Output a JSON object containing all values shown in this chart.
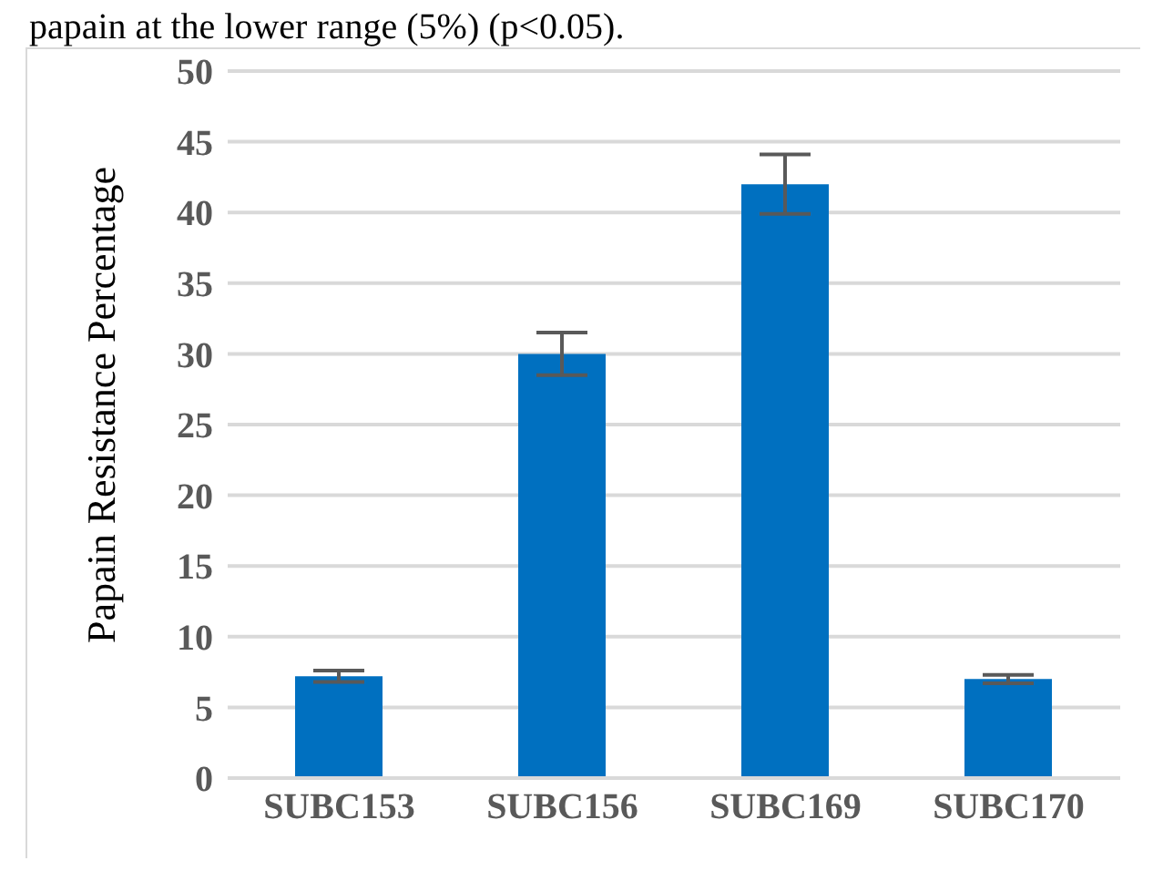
{
  "chart_data": {
    "type": "bar",
    "ylabel": "Papain Resistance Percentage",
    "annotations": [
      "papain at the lower range (5%) (p<0.05)."
    ],
    "categories": [
      "SUBC153",
      "SUBC156",
      "SUBC169",
      "SUBC170"
    ],
    "values": [
      7.2,
      30,
      42,
      7.0
    ],
    "errors": [
      0.4,
      1.5,
      2.1,
      0.3
    ],
    "color": "#0070c0",
    "ylim": [
      0,
      50
    ],
    "yticks": [
      0,
      5,
      10,
      15,
      20,
      25,
      30,
      35,
      40,
      45,
      50
    ],
    "grid": "y"
  }
}
